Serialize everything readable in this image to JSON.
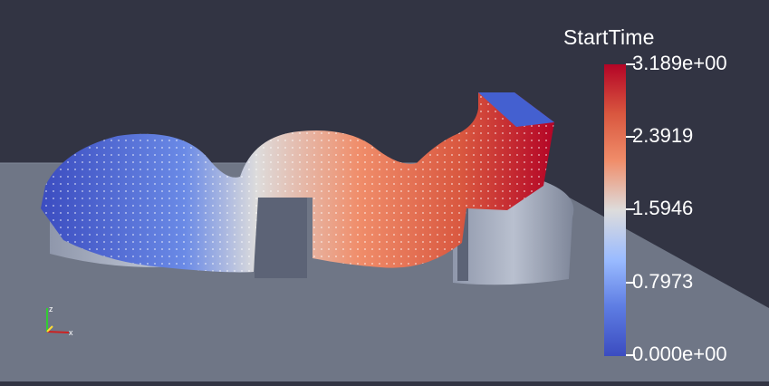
{
  "legend": {
    "title": "StartTime",
    "ticks": [
      "3.189e+00",
      "2.3919",
      "1.5946",
      "0.7973",
      "0.000e+00"
    ],
    "colormap": [
      "#b40426",
      "#d9573f",
      "#f08d6a",
      "#dddcdc",
      "#9abbff",
      "#5e7de3",
      "#3b4cc0"
    ]
  },
  "axes_widget": {
    "x": "x",
    "z": "z"
  },
  "colors": {
    "background": "#323443",
    "ground": "#6f7686"
  }
}
